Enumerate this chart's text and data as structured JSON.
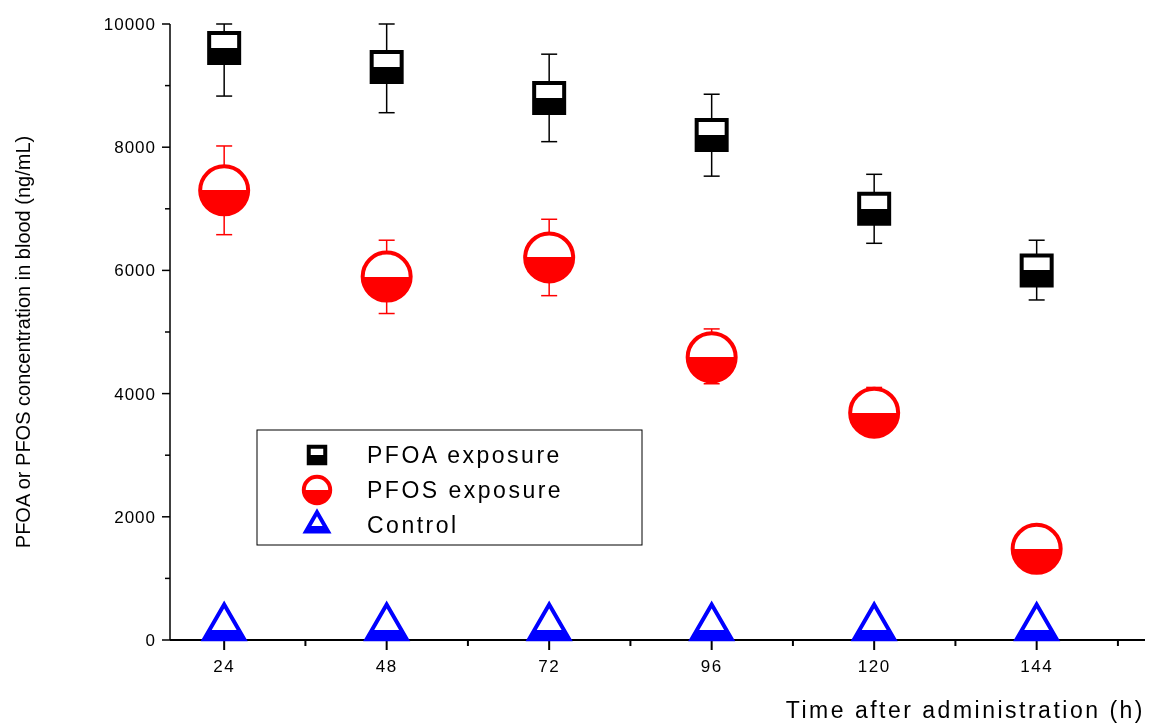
{
  "chart_data": {
    "type": "scatter",
    "xlabel": "Time after administration (h)",
    "ylabel": "PFOA or PFOS concentration in blood (ng/mL)",
    "xlim": [
      16,
      160
    ],
    "xticks": [
      24,
      {
        "value": 36,
        "label": null
      },
      48,
      {
        "value": 60,
        "label": null
      },
      72,
      {
        "value": 84,
        "label": null
      },
      96,
      {
        "value": 108,
        "label": null
      },
      120,
      {
        "value": 132,
        "label": null
      },
      144,
      {
        "value": 156,
        "label": null
      }
    ],
    "ylim": [
      0,
      10000
    ],
    "yticks": [
      0,
      {
        "value": 1000,
        "label": null
      },
      2000,
      {
        "value": 3000,
        "label": null
      },
      4000,
      {
        "value": 5000,
        "label": null
      },
      6000,
      {
        "value": 7000,
        "label": null
      },
      8000,
      {
        "value": 9000,
        "label": null
      },
      10000
    ],
    "x": [
      24,
      48,
      72,
      96,
      120,
      144
    ],
    "legend": "bottom left",
    "grid": false,
    "series": [
      {
        "name": "PFOA exposure",
        "color": "#000000",
        "marker": "square",
        "values": [
          9610,
          9300,
          8800,
          8200,
          7000,
          6000
        ],
        "errors": [
          [
            8830,
            10000
          ],
          [
            8560,
            10000
          ],
          [
            8090,
            9510
          ],
          [
            7530,
            8860
          ],
          [
            6440,
            7560
          ],
          [
            5520,
            6490
          ]
        ]
      },
      {
        "name": "PFOS exposure",
        "color": "#ff0000",
        "marker": "circle",
        "values": [
          7300,
          5900,
          6210,
          4590,
          3690,
          1480
        ],
        "errors": [
          [
            6580,
            8020
          ],
          [
            5300,
            6490
          ],
          [
            5590,
            6830
          ],
          [
            4160,
            5050
          ],
          [
            3690,
            4100
          ],
          [
            1480,
            1850
          ]
        ]
      },
      {
        "name": "Control",
        "color": "#0000ff",
        "marker": "triangle",
        "values": [
          200,
          200,
          200,
          200,
          200,
          200
        ]
      }
    ]
  }
}
